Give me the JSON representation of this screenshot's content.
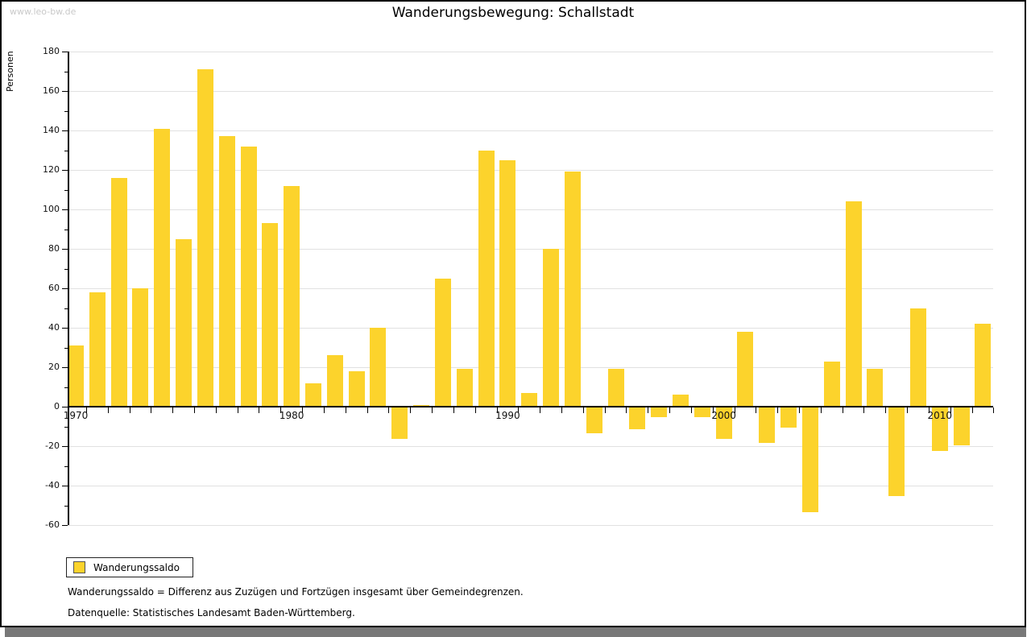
{
  "watermark": "www.leo-bw.de",
  "title": "Wanderungsbewegung: Schallstadt",
  "legend": {
    "label": "Wanderungssaldo"
  },
  "footnotes": [
    "Wanderungssaldo = Differenz aus Zuzügen und Fortzügen insgesamt über Gemeindegrenzen.",
    "Datenquelle: Statistisches Landesamt Baden-Württemberg."
  ],
  "colors": {
    "bar": "#fcd32c",
    "grid": "#e1e1e1",
    "axis": "#000000",
    "watermark": "#c9c9c9",
    "window_shadow": "#787878"
  },
  "chart_data": {
    "type": "bar",
    "title": "Wanderungsbewegung: Schallstadt",
    "xlabel": "",
    "ylabel": "Personen",
    "ylim": [
      -60,
      180
    ],
    "ytick_major_step": 20,
    "ytick_minor_step": 10,
    "grid": true,
    "legend_position": "bottom-left",
    "x_decade_labels": [
      1970,
      1980,
      1990,
      2000,
      2010
    ],
    "series": [
      {
        "name": "Wanderungssaldo",
        "years": [
          1970,
          1971,
          1972,
          1973,
          1974,
          1975,
          1976,
          1977,
          1978,
          1979,
          1980,
          1981,
          1982,
          1983,
          1984,
          1985,
          1986,
          1987,
          1988,
          1989,
          1990,
          1991,
          1992,
          1993,
          1994,
          1995,
          1996,
          1997,
          1998,
          1999,
          2000,
          2001,
          2002,
          2003,
          2004,
          2005,
          2006,
          2007,
          2008,
          2009,
          2010,
          2011,
          2012
        ],
        "values": [
          31,
          58,
          116,
          60,
          141,
          85,
          171,
          137,
          132,
          93,
          112,
          12,
          26,
          18,
          40,
          -16,
          1,
          65,
          19,
          130,
          125,
          7,
          80,
          119,
          -13,
          19,
          -11,
          -5,
          6,
          -5,
          -16,
          38,
          -18,
          -10,
          -53,
          23,
          104,
          19,
          -45,
          50,
          -22,
          -19,
          42
        ]
      }
    ]
  }
}
